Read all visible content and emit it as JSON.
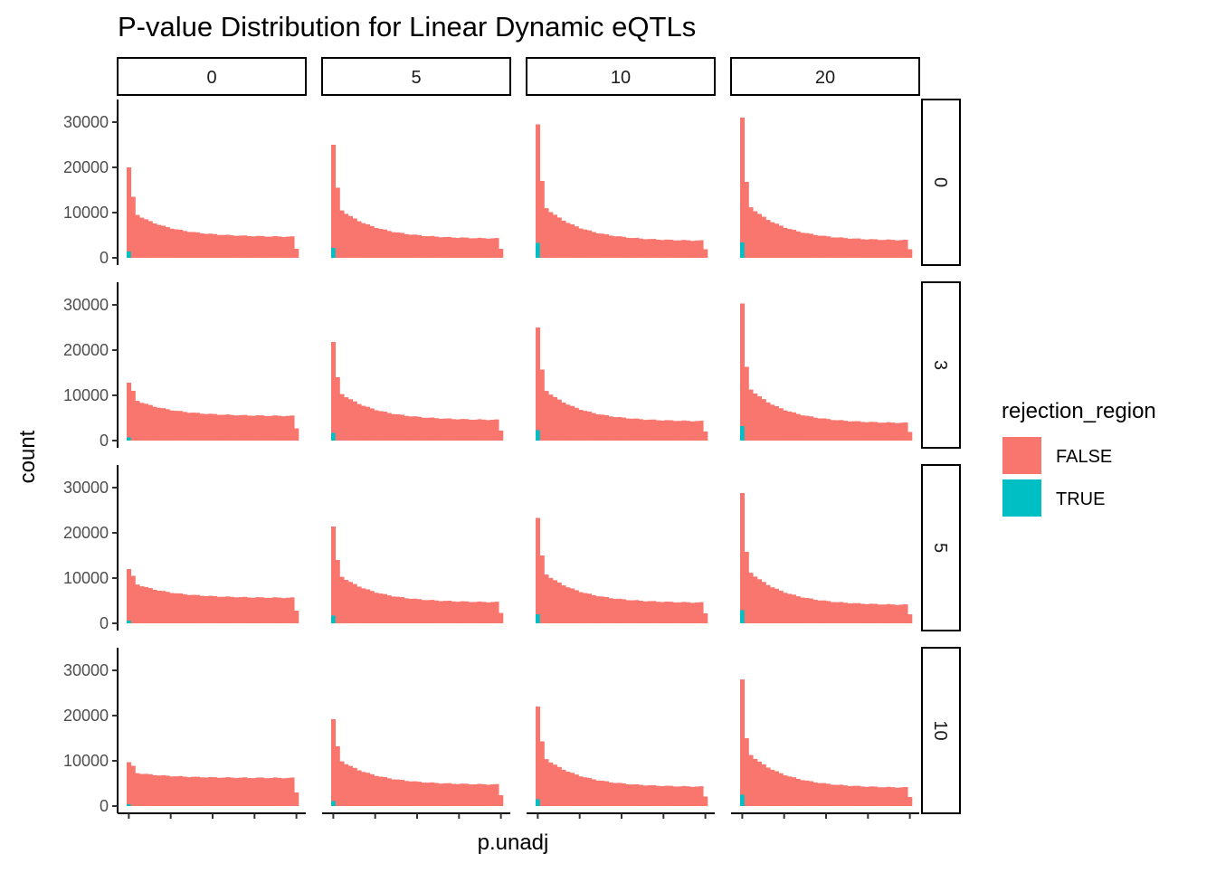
{
  "chart_data": {
    "type": "bar",
    "title": "P-value Distribution for Linear Dynamic eQTLs",
    "xlabel": "p.unadj",
    "ylabel": "count",
    "ylim": [
      0,
      33000
    ],
    "y_ticks": [
      0,
      10000,
      20000,
      30000
    ],
    "x_tick_count": 5,
    "bins": 40,
    "grid": false,
    "facet_columns": [
      "0",
      "5",
      "10",
      "20"
    ],
    "facet_rows": [
      "0",
      "3",
      "5",
      "10"
    ],
    "legend": {
      "title": "rejection_region",
      "position": "right",
      "entries": [
        {
          "label": "FALSE",
          "color": "#F8766D"
        },
        {
          "label": "TRUE",
          "color": "#00BFC4"
        }
      ]
    },
    "panels": [
      {
        "row": "0",
        "col": "0",
        "first": 20000,
        "second": 13500,
        "bulk_start": 9500,
        "bulk_end": 4600,
        "last": 2000,
        "true_first": 1400
      },
      {
        "row": "0",
        "col": "5",
        "first": 25000,
        "second": 15500,
        "bulk_start": 10500,
        "bulk_end": 4200,
        "last": 2000,
        "true_first": 2200
      },
      {
        "row": "0",
        "col": "10",
        "first": 29500,
        "second": 17000,
        "bulk_start": 11000,
        "bulk_end": 3700,
        "last": 1900,
        "true_first": 3300
      },
      {
        "row": "0",
        "col": "20",
        "first": 31000,
        "second": 16800,
        "bulk_start": 11200,
        "bulk_end": 3800,
        "last": 1900,
        "true_first": 3400
      },
      {
        "row": "3",
        "col": "0",
        "first": 12800,
        "second": 11000,
        "bulk_start": 8800,
        "bulk_end": 5400,
        "last": 2700,
        "true_first": 700
      },
      {
        "row": "3",
        "col": "5",
        "first": 21800,
        "second": 14000,
        "bulk_start": 10300,
        "bulk_end": 4500,
        "last": 2200,
        "true_first": 1700
      },
      {
        "row": "3",
        "col": "10",
        "first": 25000,
        "second": 15700,
        "bulk_start": 11000,
        "bulk_end": 4200,
        "last": 2000,
        "true_first": 2300
      },
      {
        "row": "3",
        "col": "20",
        "first": 30300,
        "second": 16300,
        "bulk_start": 11300,
        "bulk_end": 3800,
        "last": 1900,
        "true_first": 3200
      },
      {
        "row": "5",
        "col": "0",
        "first": 12000,
        "second": 10500,
        "bulk_start": 8600,
        "bulk_end": 5600,
        "last": 2800,
        "true_first": 600
      },
      {
        "row": "5",
        "col": "5",
        "first": 21400,
        "second": 14000,
        "bulk_start": 10300,
        "bulk_end": 4600,
        "last": 2300,
        "true_first": 1700
      },
      {
        "row": "5",
        "col": "10",
        "first": 23300,
        "second": 15000,
        "bulk_start": 10800,
        "bulk_end": 4500,
        "last": 2200,
        "true_first": 2000
      },
      {
        "row": "5",
        "col": "20",
        "first": 28800,
        "second": 15800,
        "bulk_start": 11200,
        "bulk_end": 4000,
        "last": 2000,
        "true_first": 2900
      },
      {
        "row": "10",
        "col": "0",
        "first": 9700,
        "second": 8900,
        "bulk_start": 7300,
        "bulk_end": 6200,
        "last": 3000,
        "true_first": 400
      },
      {
        "row": "10",
        "col": "5",
        "first": 19200,
        "second": 13200,
        "bulk_start": 9900,
        "bulk_end": 4700,
        "last": 2400,
        "true_first": 1100
      },
      {
        "row": "10",
        "col": "10",
        "first": 22000,
        "second": 14300,
        "bulk_start": 10400,
        "bulk_end": 4200,
        "last": 2100,
        "true_first": 1500
      },
      {
        "row": "10",
        "col": "20",
        "first": 28000,
        "second": 15000,
        "bulk_start": 11300,
        "bulk_end": 4000,
        "last": 2000,
        "true_first": 2500
      }
    ]
  }
}
